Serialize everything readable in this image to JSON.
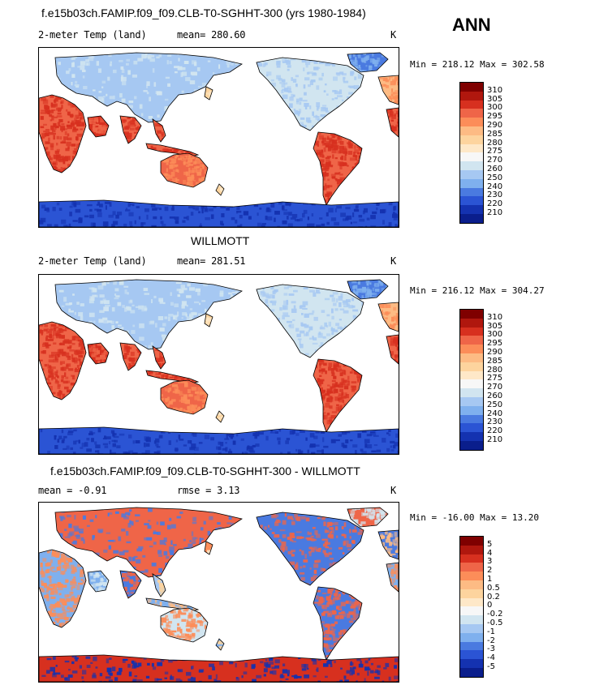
{
  "season": "ANN",
  "panels": [
    {
      "title": "f.e15b03ch.FAMIP.f09_f09.CLB-T0-SGHHT-300 (yrs 1980-1984)",
      "left": "2-meter Temp (land)",
      "mid": "mean= 280.60",
      "units": "K",
      "minmax": "Min = 218.12 Max = 302.58",
      "map_kind": "absolute",
      "colorbar": {
        "labels": [
          "310",
          "305",
          "300",
          "295",
          "290",
          "285",
          "280",
          "275",
          "270",
          "260",
          "250",
          "240",
          "230",
          "220",
          "210"
        ],
        "colors": [
          "#7f0000",
          "#b0170e",
          "#d7301f",
          "#ef6548",
          "#fc8d59",
          "#fdbb84",
          "#fdd49e",
          "#fee8c8",
          "#f7f7f7",
          "#d1e5f0",
          "#a6c8f2",
          "#7fb0ee",
          "#4a7ae0",
          "#2b54d4",
          "#1432b0",
          "#0a1e8c"
        ]
      }
    },
    {
      "title": "WILLMOTT",
      "left": "2-meter Temp (land)",
      "mid": "mean= 281.51",
      "units": "K",
      "minmax": "Min = 216.12 Max = 304.27",
      "map_kind": "absolute",
      "colorbar": {
        "labels": [
          "310",
          "305",
          "300",
          "295",
          "290",
          "285",
          "280",
          "275",
          "270",
          "260",
          "250",
          "240",
          "230",
          "220",
          "210"
        ],
        "colors": [
          "#7f0000",
          "#b0170e",
          "#d7301f",
          "#ef6548",
          "#fc8d59",
          "#fdbb84",
          "#fdd49e",
          "#fee8c8",
          "#f7f7f7",
          "#d1e5f0",
          "#a6c8f2",
          "#7fb0ee",
          "#4a7ae0",
          "#2b54d4",
          "#1432b0",
          "#0a1e8c"
        ]
      }
    },
    {
      "title": "f.e15b03ch.FAMIP.f09_f09.CLB-T0-SGHHT-300 - WILLMOTT",
      "left": "mean =  -0.91",
      "mid": "rmse =   3.13",
      "units": "K",
      "minmax": "Min = -16.00 Max =  13.20",
      "map_kind": "difference",
      "colorbar": {
        "labels": [
          "5",
          "4",
          "3",
          "2",
          "1",
          "0.5",
          "0.2",
          "0",
          "-0.2",
          "-0.5",
          "-1",
          "-2",
          "-3",
          "-4",
          "-5"
        ],
        "colors": [
          "#7f0000",
          "#b0170e",
          "#d7301f",
          "#ef6548",
          "#fc8d59",
          "#fdbb84",
          "#fdd49e",
          "#fee8c8",
          "#f7f7f7",
          "#d1e5f0",
          "#a6c8f2",
          "#7fb0ee",
          "#4a7ae0",
          "#2b54d4",
          "#1432b0",
          "#0a1e8c"
        ]
      }
    }
  ]
}
